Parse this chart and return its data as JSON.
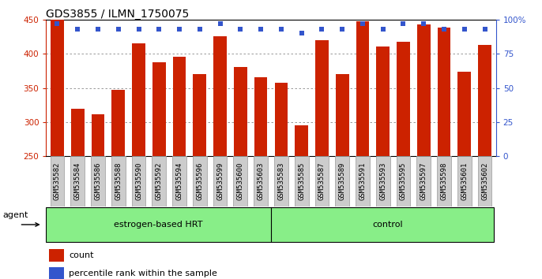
{
  "title": "GDS3855 / ILMN_1750075",
  "samples": [
    "GSM535582",
    "GSM535584",
    "GSM535586",
    "GSM535588",
    "GSM535590",
    "GSM535592",
    "GSM535594",
    "GSM535596",
    "GSM535599",
    "GSM535600",
    "GSM535603",
    "GSM535583",
    "GSM535585",
    "GSM535587",
    "GSM535589",
    "GSM535591",
    "GSM535593",
    "GSM535595",
    "GSM535597",
    "GSM535598",
    "GSM535601",
    "GSM535602"
  ],
  "counts": [
    450,
    319,
    311,
    347,
    415,
    388,
    396,
    370,
    425,
    381,
    366,
    357,
    295,
    420,
    370,
    448,
    411,
    418,
    443,
    438,
    374,
    413
  ],
  "percentile_ranks": [
    97,
    93,
    93,
    93,
    93,
    93,
    93,
    93,
    97,
    93,
    93,
    93,
    90,
    93,
    93,
    97,
    93,
    97,
    97,
    93,
    93,
    93
  ],
  "group1_label": "estrogen-based HRT",
  "group1_count": 11,
  "group2_label": "control",
  "group2_count": 11,
  "agent_label": "agent",
  "ymin": 250,
  "ymax": 450,
  "yticks_left": [
    250,
    300,
    350,
    400,
    450
  ],
  "right_yticks": [
    0,
    25,
    50,
    75,
    100
  ],
  "bar_color": "#cc2200",
  "dot_color": "#3355cc",
  "grid_color": "#888888",
  "bg_color": "#ffffff",
  "group_bg": "#88ee88",
  "tick_bg": "#cccccc",
  "legend_count_color": "#cc2200",
  "legend_pct_color": "#3355cc",
  "title_fontsize": 10,
  "label_fontsize": 6.5,
  "bar_width": 0.65
}
